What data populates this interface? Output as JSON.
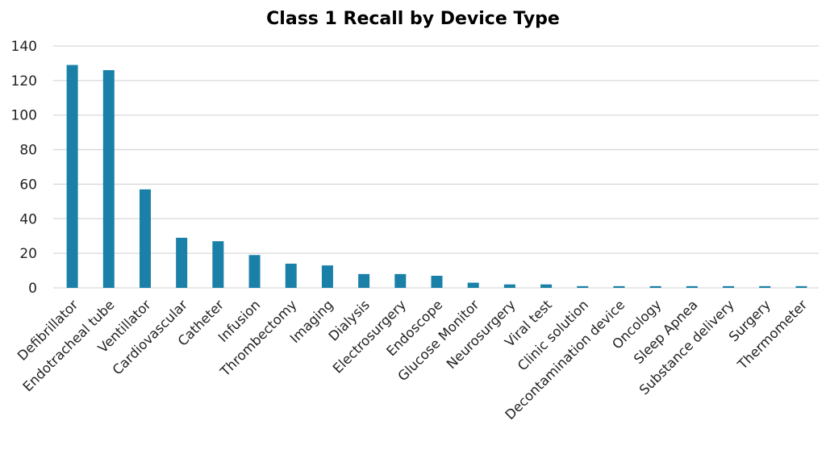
{
  "chart_data": {
    "type": "bar",
    "title": "Class 1 Recall by Device Type",
    "xlabel": "",
    "ylabel": "",
    "ylim": [
      0,
      140
    ],
    "yticks": [
      0,
      20,
      40,
      60,
      80,
      100,
      120,
      140
    ],
    "grid": true,
    "legend": "none",
    "bar_color": "#1a80a8",
    "categories": [
      "Defibrillator",
      "Endotracheal tube",
      "Ventillator",
      "Cardiovascular",
      "Catheter",
      "Infusion",
      "Thrombectomy",
      "Imaging",
      "Dialysis",
      "Electrosurgery",
      "Endoscope",
      "Glucose Monitor",
      "Neurosurgery",
      "Viral test",
      "Clinic solution",
      "Decontamination device",
      "Oncology",
      "Sleep Apnea",
      "Substance delivery",
      "Surgery",
      "Thermometer"
    ],
    "values": [
      129,
      126,
      57,
      29,
      27,
      19,
      14,
      13,
      8,
      8,
      7,
      3,
      2,
      2,
      1,
      1,
      1,
      1,
      1,
      1,
      1
    ]
  }
}
